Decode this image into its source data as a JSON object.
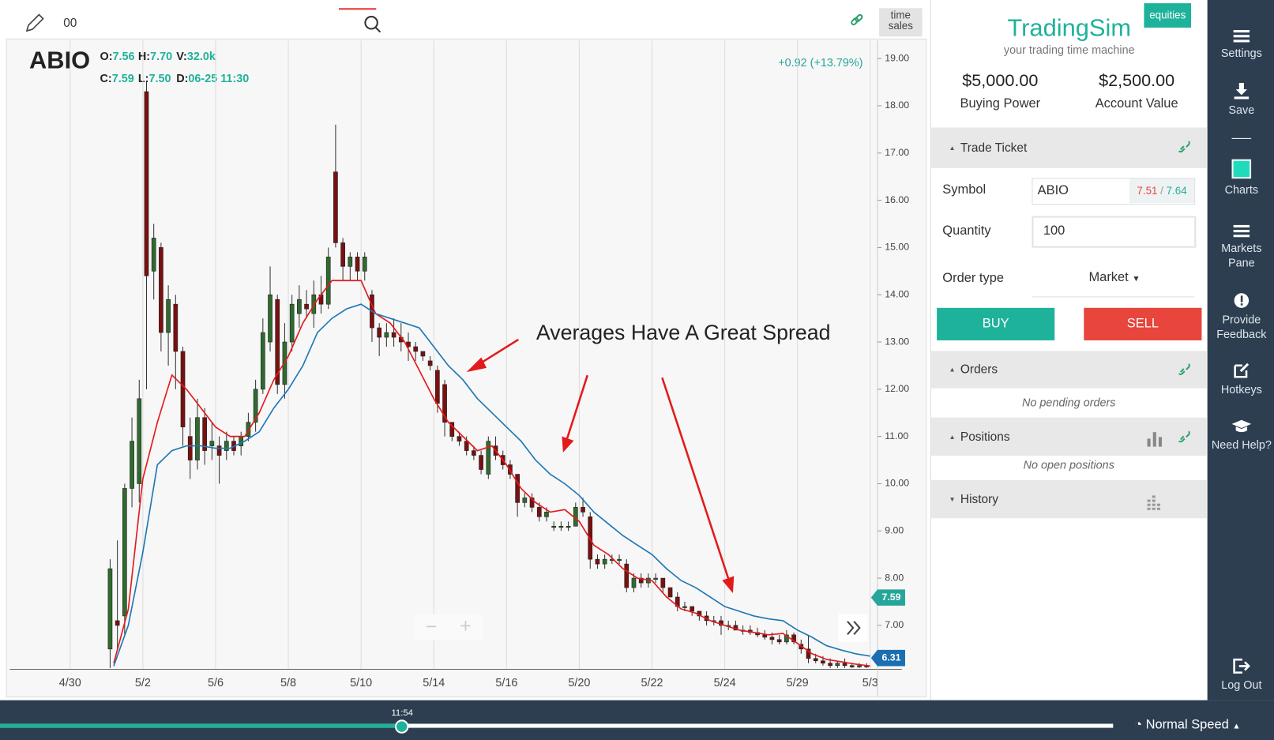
{
  "toolbar": {
    "search": "00",
    "time_sales": "time sales"
  },
  "quote": {
    "symbol": "ABIO",
    "fields": [
      {
        "label": "O:",
        "value": "7.56"
      },
      {
        "label": "H:",
        "value": "7.70"
      },
      {
        "label": "V:",
        "value": "32.0k"
      },
      {
        "label": "C:",
        "value": "7.59"
      },
      {
        "label": "L:",
        "value": "7.50"
      },
      {
        "label": "D:",
        "value": "06-25 11:30"
      }
    ],
    "change": "+0.92 (+13.79%)"
  },
  "chart_data": {
    "type": "candlestick",
    "annotation": "Averages Have A Great Spread",
    "up_color": "#2f6b2f",
    "down_color": "#7a1010",
    "x": [
      5.5,
      6.5,
      7.5,
      8.5,
      9.5,
      10.5,
      11.5,
      12.5,
      13.5,
      14.5,
      15.5,
      16.5,
      17.5,
      18.5,
      19.5,
      20.5,
      21.5,
      22.5,
      23.5,
      24.5,
      25.5,
      26.5,
      27.5,
      28.5,
      29.5,
      30.5,
      31.5,
      32.5,
      33.5,
      34.5,
      35.5,
      36.5,
      37.5,
      38.5,
      39.5,
      40.5,
      41.5,
      42.5,
      43.5,
      44.5,
      45.5,
      46.5,
      47.5,
      48.5,
      49.5,
      50.5,
      51.5,
      52.5,
      53.5,
      54.5,
      55.5,
      56.5,
      57.5,
      58.5,
      59.5,
      60.5,
      61.5,
      62.5,
      63.5,
      64.5,
      65.5,
      66.5,
      67.5,
      68.5,
      69.5,
      70.5,
      71.5,
      72.5,
      73.5,
      74.5,
      75.5,
      76.5,
      77.5,
      78.5,
      79.5,
      80.5,
      81.5,
      82.5,
      83.5,
      84.5,
      85.5,
      86.5,
      87.5,
      88.5,
      89.5,
      90.5,
      91.5,
      92.5,
      93.5,
      94.5,
      95.5,
      96.5,
      97.5,
      98.5,
      99.5,
      100.5,
      101.5,
      102.5,
      103.5,
      104.5,
      105.5,
      106.5,
      107.5,
      108.5,
      109.5
    ],
    "open": [
      6.5,
      7.1,
      7.2,
      9.9,
      10.0,
      18.3,
      14.5,
      15.0,
      13.2,
      13.8,
      12.8,
      11.0,
      10.5,
      11.4,
      10.8,
      10.8,
      10.7,
      10.9,
      10.8,
      11.0,
      11.3,
      12.0,
      13.0,
      13.9,
      12.1,
      13.0,
      13.6,
      13.8,
      13.6,
      14.0,
      13.8,
      16.6,
      15.1,
      14.6,
      14.8,
      14.5,
      14.0,
      13.3,
      13.1,
      13.2,
      13.1,
      13.0,
      12.9,
      12.8,
      12.6,
      12.4,
      12.1,
      11.3,
      11.0,
      10.9,
      10.7,
      10.6,
      10.2,
      10.8,
      10.6,
      10.4,
      10.2,
      9.6,
      9.7,
      9.5,
      9.3,
      9.1,
      9.1,
      9.1,
      9.1,
      9.5,
      9.3,
      8.4,
      8.3,
      8.4,
      8.4,
      8.3,
      7.8,
      8.0,
      7.9,
      8.0,
      8.0,
      7.8,
      7.6,
      7.4,
      7.4,
      7.3,
      7.2,
      7.1,
      7.1,
      7.0,
      7.0,
      6.9,
      6.9,
      6.85,
      6.8,
      6.75,
      6.7,
      6.65,
      6.8,
      6.6,
      6.5,
      6.3,
      6.25,
      6.2,
      6.15,
      6.2,
      6.15,
      6.12,
      6.15
    ],
    "high": [
      8.4,
      8.8,
      10.0,
      11.4,
      12.2,
      18.5,
      15.5,
      15.1,
      14.2,
      14.0,
      12.9,
      11.4,
      11.8,
      11.6,
      11.3,
      11.0,
      11.1,
      11.0,
      11.1,
      11.5,
      12.2,
      13.5,
      14.6,
      14.0,
      13.4,
      14.0,
      14.2,
      14.1,
      14.3,
      14.4,
      15.0,
      17.6,
      15.2,
      14.9,
      14.9,
      14.9,
      14.1,
      13.4,
      13.4,
      13.5,
      13.4,
      13.2,
      13.0,
      12.8,
      12.7,
      12.5,
      12.2,
      11.3,
      11.1,
      11.0,
      10.8,
      10.7,
      11.0,
      11.0,
      10.7,
      10.5,
      10.2,
      9.8,
      9.8,
      9.6,
      9.5,
      9.2,
      9.2,
      9.2,
      9.6,
      9.7,
      9.4,
      8.5,
      8.5,
      8.5,
      8.5,
      8.4,
      8.1,
      8.1,
      8.1,
      8.1,
      8.0,
      7.8,
      7.7,
      7.5,
      7.4,
      7.3,
      7.3,
      7.2,
      7.2,
      7.1,
      7.1,
      7.0,
      7.0,
      6.95,
      6.9,
      6.85,
      6.8,
      6.9,
      6.85,
      6.7,
      6.8,
      6.4,
      6.35,
      6.3,
      6.25,
      6.3,
      6.2,
      6.2,
      6.2
    ],
    "low": [
      6.1,
      6.5,
      6.8,
      9.5,
      9.6,
      12.0,
      13.9,
      12.8,
      12.5,
      12.0,
      10.8,
      10.1,
      10.3,
      10.4,
      10.5,
      10.0,
      10.5,
      10.6,
      10.6,
      10.9,
      11.1,
      11.9,
      12.8,
      11.9,
      11.8,
      12.8,
      13.3,
      13.5,
      13.3,
      13.6,
      13.7,
      15.0,
      14.3,
      14.3,
      14.3,
      14.3,
      13.0,
      12.7,
      12.9,
      12.9,
      12.8,
      12.6,
      12.6,
      12.6,
      12.4,
      11.5,
      11.0,
      10.9,
      10.8,
      10.6,
      10.5,
      10.2,
      10.1,
      10.5,
      10.3,
      10.1,
      9.3,
      9.5,
      9.4,
      9.2,
      9.2,
      9.0,
      9.0,
      9.0,
      9.1,
      9.3,
      8.2,
      8.2,
      8.2,
      8.3,
      8.3,
      7.7,
      7.7,
      7.8,
      7.8,
      7.9,
      7.7,
      7.6,
      7.3,
      7.3,
      7.2,
      7.1,
      7.0,
      7.0,
      6.8,
      6.9,
      6.9,
      6.8,
      6.8,
      6.75,
      6.7,
      6.6,
      6.6,
      6.6,
      6.6,
      6.4,
      6.2,
      6.2,
      6.15,
      6.1,
      6.1,
      6.1,
      6.1,
      6.1,
      6.1
    ],
    "close": [
      8.2,
      7.0,
      9.9,
      10.9,
      11.8,
      14.4,
      15.2,
      13.2,
      13.9,
      12.8,
      11.2,
      10.5,
      11.4,
      10.7,
      10.9,
      10.6,
      10.9,
      10.7,
      11.0,
      11.3,
      12.0,
      13.2,
      14.0,
      12.1,
      13.0,
      13.8,
      13.9,
      13.7,
      14.0,
      13.8,
      14.8,
      15.1,
      14.6,
      14.8,
      14.5,
      14.8,
      13.3,
      13.1,
      13.2,
      13.1,
      13.0,
      12.9,
      12.8,
      12.7,
      12.5,
      11.7,
      11.3,
      11.0,
      10.9,
      10.7,
      10.6,
      10.3,
      10.9,
      10.6,
      10.4,
      10.2,
      9.6,
      9.7,
      9.5,
      9.3,
      9.4,
      9.1,
      9.1,
      9.1,
      9.5,
      9.4,
      8.4,
      8.3,
      8.4,
      8.4,
      8.4,
      7.8,
      8.0,
      7.9,
      8.0,
      8.0,
      7.8,
      7.6,
      7.4,
      7.4,
      7.3,
      7.2,
      7.1,
      7.1,
      7.0,
      7.0,
      6.9,
      6.9,
      6.85,
      6.8,
      6.75,
      6.7,
      6.65,
      6.8,
      6.65,
      6.5,
      6.3,
      6.25,
      6.2,
      6.15,
      6.2,
      6.15,
      6.12,
      6.15,
      6.12
    ],
    "lines": [
      {
        "color": "#e41a1c",
        "x": [
          6,
          8,
          10,
          12,
          14,
          16,
          18,
          20,
          22,
          24,
          26,
          28,
          30,
          32,
          34,
          36,
          38,
          40,
          42,
          44,
          46,
          48,
          50,
          52,
          54,
          56,
          58,
          60,
          62,
          64,
          66,
          68,
          70,
          72,
          74,
          76,
          78,
          80,
          82,
          84,
          86,
          88,
          90,
          92,
          94,
          96,
          98,
          100,
          102,
          104,
          106,
          108,
          110
        ],
        "values": [
          6.2,
          7.34,
          10.1,
          11.3,
          12.3,
          12.0,
          11.6,
          11.2,
          11.0,
          11.0,
          11.5,
          12.2,
          12.7,
          13.4,
          13.9,
          14.3,
          14.3,
          14.3,
          13.6,
          13.4,
          13.0,
          12.4,
          11.8,
          11.3,
          11.0,
          10.7,
          10.8,
          10.4,
          9.9,
          9.6,
          9.4,
          9.45,
          9.2,
          8.7,
          8.5,
          8.2,
          8.0,
          7.95,
          7.6,
          7.35,
          7.26,
          7.1,
          7.0,
          6.9,
          6.85,
          6.8,
          6.83,
          6.62,
          6.4,
          6.28,
          6.23,
          6.18,
          6.14
        ]
      },
      {
        "color": "#1f77b4",
        "x": [
          6,
          8,
          10,
          12,
          14,
          16,
          18,
          20,
          22,
          24,
          26,
          28,
          30,
          32,
          34,
          36,
          38,
          40,
          42,
          44,
          46,
          48,
          50,
          52,
          54,
          56,
          58,
          60,
          62,
          64,
          66,
          68,
          70,
          72,
          74,
          76,
          78,
          80,
          82,
          84,
          86,
          88,
          90,
          92,
          94,
          96,
          98,
          100,
          102,
          104,
          106,
          108,
          110
        ],
        "values": [
          6.14,
          7.0,
          8.55,
          10.4,
          10.7,
          10.8,
          10.8,
          10.75,
          10.75,
          10.9,
          11.1,
          11.6,
          12.0,
          12.5,
          13.2,
          13.5,
          13.7,
          13.8,
          13.6,
          13.5,
          13.4,
          13.3,
          12.9,
          12.5,
          12.2,
          11.8,
          11.5,
          11.2,
          10.9,
          10.5,
          10.2,
          10.0,
          9.75,
          9.4,
          9.15,
          8.9,
          8.7,
          8.5,
          8.2,
          7.95,
          7.8,
          7.6,
          7.4,
          7.3,
          7.2,
          7.14,
          7.1,
          6.9,
          6.75,
          6.57,
          6.48,
          6.4,
          6.35
        ]
      }
    ],
    "price_tags": [
      {
        "value": 7.59,
        "color": "#26a69a"
      },
      {
        "value": 6.31,
        "color": "#1b6fb0"
      }
    ],
    "xlim": [
      -8.3,
      111
    ],
    "ylim": [
      6.07,
      19.38
    ],
    "grid": "x",
    "xticks": [
      {
        "value": 0,
        "label": "4/30"
      },
      {
        "value": 10,
        "label": "5/2"
      },
      {
        "value": 20,
        "label": "5/6"
      },
      {
        "value": 30,
        "label": "5/8"
      },
      {
        "value": 40,
        "label": "5/10"
      },
      {
        "value": 50,
        "label": "5/14"
      },
      {
        "value": 60,
        "label": "5/16"
      },
      {
        "value": 70,
        "label": "5/20"
      },
      {
        "value": 80,
        "label": "5/22"
      },
      {
        "value": 90,
        "label": "5/24"
      },
      {
        "value": 100,
        "label": "5/29"
      },
      {
        "value": 110,
        "label": "5/3"
      }
    ],
    "yticks": [
      {
        "value": 7,
        "label": "7.00"
      },
      {
        "value": 8,
        "label": "8.00"
      },
      {
        "value": 9,
        "label": "9.00"
      },
      {
        "value": 10,
        "label": "10.00"
      },
      {
        "value": 11,
        "label": "11.00"
      },
      {
        "value": 12,
        "label": "12.00"
      },
      {
        "value": 13,
        "label": "13.00"
      },
      {
        "value": 14,
        "label": "14.00"
      },
      {
        "value": 15,
        "label": "15.00"
      },
      {
        "value": 16,
        "label": "16.00"
      },
      {
        "value": 17,
        "label": "17.00"
      },
      {
        "value": 18,
        "label": "18.00"
      },
      {
        "value": 19,
        "label": "19.00"
      }
    ]
  },
  "brand": {
    "title": "TradingSim",
    "badge": "equities",
    "subtitle": "your trading time machine"
  },
  "account": {
    "buying_power": "$5,000.00",
    "buying_power_label": "Buying Power",
    "account_value": "$2,500.00",
    "account_value_label": "Account Value"
  },
  "trade_ticket": {
    "title": "Trade Ticket",
    "symbol_label": "Symbol",
    "symbol": "ABIO",
    "bid": "7.51",
    "ask": "7.64",
    "quantity_label": "Quantity",
    "quantity": "100",
    "order_type_label": "Order type",
    "order_type": "Market",
    "buy": "BUY",
    "sell": "SELL"
  },
  "orders": {
    "title": "Orders",
    "empty": "No pending orders"
  },
  "positions": {
    "title": "Positions",
    "empty": "No open positions"
  },
  "history": {
    "title": "History"
  },
  "sidebar": [
    "Settings",
    "Save",
    "Charts",
    "Markets Pane",
    "Provide Feedback",
    "Hotkeys",
    "Need Help?",
    "Log Out"
  ],
  "playback": {
    "time": "11:54",
    "speed": "Normal Speed"
  }
}
